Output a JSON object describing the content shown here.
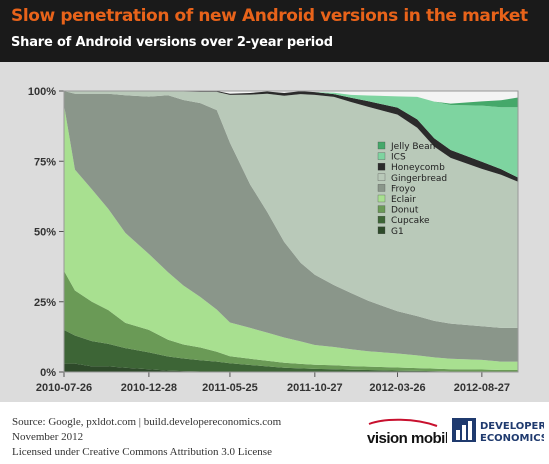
{
  "header": {
    "title": "Slow penetration of new Android versions in the market",
    "subtitle": "Share of Android versions over 2-year period"
  },
  "footer": {
    "source": "Source: Google, pxldot.com | build.developereconomics.com",
    "date": "November 2012",
    "license": "Licensed under Creative Commons Attribution 3.0 License"
  },
  "logos": {
    "vision_mobile": "vision mobile",
    "developer_economics_1": "DEVELOPER",
    "developer_economics_2": "ECONOMICS"
  },
  "chart_data": {
    "type": "area",
    "stacked": true,
    "title": "",
    "xlabel": "",
    "ylabel": "",
    "ylim": [
      0,
      100
    ],
    "y_ticks": [
      "0%",
      "25%",
      "50%",
      "75%",
      "100%"
    ],
    "x_ticks": [
      "2010-07-26",
      "2010-12-28",
      "2011-05-25",
      "2011-10-27",
      "2012-03-26",
      "2012-08-27"
    ],
    "x": [
      "2010-07-26",
      "2010-08-15",
      "2010-09-15",
      "2010-10-15",
      "2010-11-15",
      "2010-12-28",
      "2011-02-01",
      "2011-03-01",
      "2011-04-01",
      "2011-05-01",
      "2011-05-25",
      "2011-07-01",
      "2011-08-01",
      "2011-09-01",
      "2011-10-01",
      "2011-10-27",
      "2011-12-01",
      "2012-01-01",
      "2012-02-01",
      "2012-03-26",
      "2012-05-01",
      "2012-06-01",
      "2012-07-01",
      "2012-08-27",
      "2012-10-01",
      "2012-11-01"
    ],
    "legend_position": "right-center",
    "series": [
      {
        "name": "G1",
        "color": "#2e4a2a",
        "values": [
          3,
          3,
          2,
          2,
          1.5,
          1,
          0.5,
          0.3,
          0.2,
          0.2,
          0.1,
          0,
          0,
          0,
          0,
          0,
          0,
          0,
          0,
          0,
          0,
          0,
          0,
          0,
          0,
          0
        ]
      },
      {
        "name": "Cupcake",
        "color": "#3d6536",
        "values": [
          12,
          10,
          9,
          8,
          7,
          6,
          5,
          4.5,
          4,
          3.5,
          3,
          2.5,
          2,
          1.5,
          1.3,
          1.1,
          1,
          0.8,
          0.7,
          0.5,
          0.4,
          0.3,
          0.2,
          0.2,
          0.1,
          0.1
        ]
      },
      {
        "name": "Donut",
        "color": "#6a9a56",
        "values": [
          21,
          16,
          14,
          12,
          9,
          8,
          6,
          5,
          4.5,
          3.5,
          2.5,
          2.2,
          2,
          1.8,
          1.6,
          1.5,
          1.4,
          1.3,
          1.2,
          1.1,
          1,
          0.9,
          0.8,
          0.7,
          0.6,
          0.6
        ]
      },
      {
        "name": "Eclair",
        "color": "#a8e090",
        "values": [
          59,
          43,
          40,
          36,
          32,
          27,
          24,
          21,
          18,
          15,
          12,
          11,
          10,
          9,
          8,
          7,
          6.5,
          6,
          5.5,
          5,
          4.5,
          4,
          3.7,
          3.4,
          3,
          3
        ]
      },
      {
        "name": "Froyo",
        "color": "#8a968a",
        "values": [
          5,
          27,
          34,
          41,
          49,
          56,
          63,
          66,
          69,
          71,
          64,
          51,
          43,
          34,
          28,
          25,
          22,
          20,
          18,
          15,
          14,
          13,
          12.5,
          12,
          12,
          12
        ]
      },
      {
        "name": "Gingerbread",
        "color": "#b9c9b9",
        "values": [
          0,
          1,
          1,
          1,
          1.5,
          2,
          1.5,
          3,
          4,
          6.5,
          17,
          32,
          42,
          52,
          60,
          64,
          67,
          68,
          69,
          70,
          67,
          62,
          59,
          56,
          54.5,
          52
        ]
      },
      {
        "name": "Honeycomb",
        "color": "#2b2b2b",
        "values": [
          0,
          0,
          0,
          0,
          0,
          0,
          0,
          0.2,
          0.3,
          0.3,
          0.4,
          0.6,
          0.8,
          1,
          1,
          1,
          1,
          1.5,
          2,
          2.5,
          3,
          3,
          2.8,
          2.5,
          2,
          1.5
        ]
      },
      {
        "name": "ICS",
        "color": "#7ed4a0",
        "values": [
          0,
          0,
          0,
          0,
          0,
          0,
          0,
          0,
          0,
          0,
          0,
          0,
          0,
          0,
          0,
          0,
          0.5,
          1,
          2,
          4,
          8,
          13,
          16,
          20,
          22,
          25
        ]
      },
      {
        "name": "Jelly Bean",
        "color": "#45a86a",
        "values": [
          0,
          0,
          0,
          0,
          0,
          0,
          0,
          0,
          0,
          0,
          0,
          0,
          0,
          0,
          0,
          0,
          0,
          0,
          0,
          0,
          0,
          0,
          0.5,
          1.5,
          2.5,
          3.5
        ]
      }
    ]
  }
}
